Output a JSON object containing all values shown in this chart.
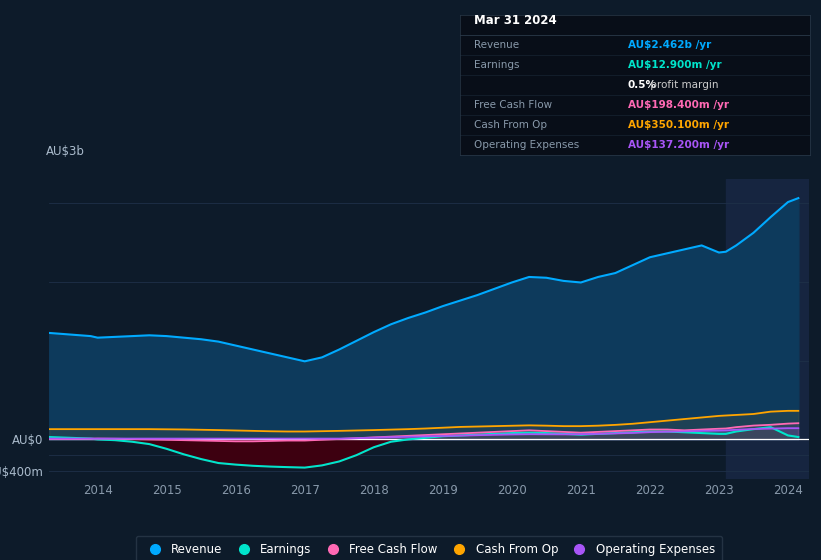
{
  "bg_color": "#0d1b2a",
  "plot_bg": "#0d1b2a",
  "grid_color": "#1e3048",
  "years": [
    2013.3,
    2013.6,
    2013.9,
    2014.0,
    2014.25,
    2014.5,
    2014.75,
    2015.0,
    2015.25,
    2015.5,
    2015.75,
    2016.0,
    2016.25,
    2016.5,
    2016.75,
    2017.0,
    2017.25,
    2017.5,
    2017.75,
    2018.0,
    2018.25,
    2018.5,
    2018.75,
    2019.0,
    2019.25,
    2019.5,
    2019.75,
    2020.0,
    2020.25,
    2020.5,
    2020.75,
    2021.0,
    2021.25,
    2021.5,
    2021.75,
    2022.0,
    2022.25,
    2022.5,
    2022.75,
    2023.0,
    2023.1,
    2023.25,
    2023.5,
    2023.75,
    2024.0,
    2024.15
  ],
  "revenue": [
    1350,
    1330,
    1310,
    1290,
    1300,
    1310,
    1320,
    1310,
    1290,
    1270,
    1240,
    1190,
    1140,
    1090,
    1040,
    990,
    1040,
    1140,
    1250,
    1360,
    1460,
    1540,
    1610,
    1690,
    1760,
    1830,
    1910,
    1990,
    2060,
    2050,
    2010,
    1990,
    2060,
    2110,
    2210,
    2310,
    2360,
    2410,
    2460,
    2370,
    2380,
    2460,
    2620,
    2820,
    3010,
    3060
  ],
  "earnings": [
    30,
    20,
    10,
    0,
    -10,
    -30,
    -60,
    -120,
    -190,
    -250,
    -300,
    -320,
    -335,
    -345,
    -352,
    -358,
    -330,
    -280,
    -200,
    -100,
    -30,
    0,
    20,
    40,
    50,
    60,
    70,
    80,
    85,
    80,
    70,
    60,
    70,
    80,
    90,
    100,
    100,
    90,
    80,
    70,
    70,
    100,
    130,
    155,
    50,
    30
  ],
  "free_cash_flow": [
    5,
    5,
    8,
    10,
    8,
    5,
    0,
    -5,
    -10,
    -15,
    -20,
    -25,
    -25,
    -20,
    -15,
    -15,
    -5,
    5,
    15,
    25,
    35,
    45,
    55,
    65,
    75,
    85,
    95,
    105,
    115,
    105,
    95,
    85,
    95,
    105,
    115,
    125,
    125,
    115,
    125,
    135,
    138,
    155,
    175,
    185,
    200,
    205
  ],
  "cash_from_op": [
    130,
    130,
    130,
    130,
    130,
    130,
    130,
    128,
    126,
    122,
    118,
    113,
    108,
    103,
    100,
    100,
    104,
    108,
    113,
    118,
    124,
    130,
    138,
    148,
    158,
    163,
    168,
    173,
    178,
    174,
    168,
    168,
    174,
    184,
    198,
    218,
    238,
    258,
    278,
    298,
    303,
    310,
    322,
    352,
    362,
    362
  ],
  "operating_expenses": [
    10,
    10,
    10,
    10,
    10,
    10,
    10,
    10,
    10,
    10,
    10,
    10,
    10,
    10,
    10,
    10,
    10,
    10,
    15,
    22,
    28,
    33,
    38,
    43,
    48,
    53,
    58,
    63,
    66,
    65,
    64,
    65,
    70,
    76,
    82,
    92,
    97,
    102,
    108,
    112,
    114,
    122,
    132,
    137,
    142,
    142
  ],
  "revenue_color": "#00aaff",
  "earnings_color": "#00e5cc",
  "free_cash_flow_color": "#ff69b4",
  "cash_from_op_color": "#ffa500",
  "operating_expenses_color": "#a855f7",
  "revenue_fill": "#0d3a5c",
  "earnings_neg_fill": "#3d0010",
  "earnings_pos_fill": "#003d30",
  "highlight_band_color": "#162540",
  "highlight_start": 2023.1,
  "highlight_end": 2024.15,
  "ylim": [
    -500,
    3300
  ],
  "xlim": [
    2013.3,
    2024.3
  ],
  "xticks": [
    2014,
    2015,
    2016,
    2017,
    2018,
    2019,
    2020,
    2021,
    2022,
    2023,
    2024
  ],
  "legend_items": [
    "Revenue",
    "Earnings",
    "Free Cash Flow",
    "Cash From Op",
    "Operating Expenses"
  ],
  "legend_colors": [
    "#00aaff",
    "#00e5cc",
    "#ff69b4",
    "#ffa500",
    "#a855f7"
  ],
  "info_box": {
    "date": "Mar 31 2024",
    "rows": [
      {
        "label": "Revenue",
        "value": "AU$2.462b /yr",
        "value_color": "#00aaff",
        "bold_value": true
      },
      {
        "label": "Earnings",
        "value": "AU$12.900m /yr",
        "value_color": "#00e5cc",
        "bold_value": true
      },
      {
        "label": "",
        "value": "0.5% profit margin",
        "value_color": "#ffffff",
        "bold_value": false,
        "bold_part": "0.5%"
      },
      {
        "label": "Free Cash Flow",
        "value": "AU$198.400m /yr",
        "value_color": "#ff69b4",
        "bold_value": true
      },
      {
        "label": "Cash From Op",
        "value": "AU$350.100m /yr",
        "value_color": "#ffa500",
        "bold_value": true
      },
      {
        "label": "Operating Expenses",
        "value": "AU$137.200m /yr",
        "value_color": "#a855f7",
        "bold_value": true
      }
    ]
  }
}
